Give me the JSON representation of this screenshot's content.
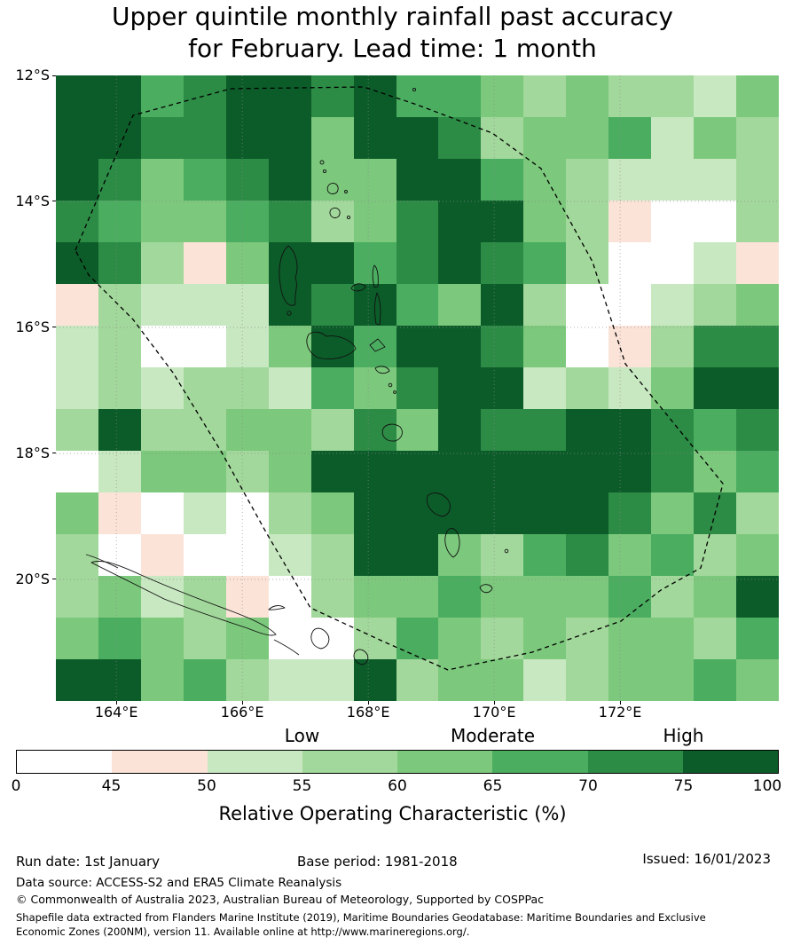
{
  "title": {
    "line1": "Upper quintile monthly rainfall past accuracy",
    "line2": "for February. Lead time: 1 month"
  },
  "footer": {
    "run_date": "Run date: 1st January",
    "base_period": "Base period: 1981-2018",
    "issued": "Issued: 16/01/2023",
    "data_source": "Data source: ACCESS-S2 and ERA5 Climate Reanalysis",
    "copyright": "© Commonwealth of Australia 2023, Australian Bureau of Meteorology, Supported by COSPPac",
    "shapefile_note": "Shapefile data extracted from Flanders Marine Institute (2019), Maritime Boundaries Geodatabase: Maritime Boundaries and Exclusive Economic Zones (200NM), version 11. Available online at http://www.marineregions.org/."
  },
  "chart_data": {
    "type": "heatmap",
    "title": "Upper quintile monthly rainfall past accuracy for February. Lead time: 1 month",
    "region": "Vanuatu",
    "lon_range": [
      163.04,
      174.52
    ],
    "lat_range": [
      12.0,
      21.93
    ],
    "x_tick_lons": [
      164,
      166,
      168,
      170,
      172
    ],
    "x_tick_labels": [
      "164°E",
      "166°E",
      "168°E",
      "170°E",
      "172°E"
    ],
    "y_tick_lats": [
      12,
      14,
      16,
      18,
      20
    ],
    "y_tick_labels": [
      "12°S",
      "14°S",
      "16°S",
      "18°S",
      "20°S"
    ],
    "colorbar": {
      "axis_label": "Relative Operating Characteristic (%)",
      "qualitative_labels": [
        "Low",
        "Moderate",
        "High"
      ],
      "tick_labels": [
        "0",
        "45",
        "50",
        "55",
        "60",
        "65",
        "70",
        "75",
        "100"
      ],
      "bin_ranges": [
        "0-45",
        "45-50",
        "50-55",
        "55-60",
        "60-65",
        "65-70",
        "70-75",
        "75-100"
      ],
      "bin_colors": [
        "#ffffff",
        "#fbe3d8",
        "#c8e8c1",
        "#a2d89b",
        "#7cc87c",
        "#4bad60",
        "#2c8b45",
        "#0c5c29"
      ]
    },
    "grid": {
      "rows": 15,
      "cols": 17,
      "value_kind": "colorbar_bin_index",
      "bin_index_values": [
        [
          7,
          7,
          5,
          6,
          7,
          7,
          6,
          7,
          5,
          5,
          4,
          3,
          4,
          3,
          3,
          2,
          4
        ],
        [
          7,
          7,
          6,
          6,
          7,
          7,
          4,
          7,
          7,
          6,
          3,
          4,
          4,
          5,
          2,
          4,
          3
        ],
        [
          7,
          6,
          4,
          5,
          6,
          7,
          4,
          4,
          7,
          7,
          5,
          4,
          3,
          2,
          2,
          2,
          3
        ],
        [
          6,
          5,
          4,
          4,
          5,
          6,
          3,
          4,
          6,
          7,
          7,
          4,
          3,
          1,
          0,
          0,
          3
        ],
        [
          7,
          6,
          3,
          1,
          4,
          7,
          7,
          5,
          6,
          7,
          6,
          5,
          3,
          0,
          0,
          2,
          1
        ],
        [
          1,
          3,
          2,
          2,
          2,
          7,
          6,
          7,
          5,
          4,
          7,
          3,
          0,
          0,
          2,
          3,
          4
        ],
        [
          2,
          3,
          0,
          0,
          2,
          4,
          7,
          5,
          7,
          7,
          6,
          4,
          0,
          1,
          3,
          6,
          6
        ],
        [
          2,
          3,
          2,
          3,
          3,
          2,
          5,
          4,
          6,
          7,
          7,
          2,
          3,
          2,
          4,
          7,
          7
        ],
        [
          3,
          7,
          3,
          3,
          4,
          4,
          3,
          6,
          4,
          7,
          6,
          6,
          7,
          7,
          6,
          5,
          6
        ],
        [
          0,
          2,
          4,
          4,
          3,
          4,
          7,
          7,
          7,
          7,
          7,
          7,
          7,
          7,
          6,
          4,
          5
        ],
        [
          4,
          1,
          0,
          2,
          0,
          3,
          4,
          7,
          7,
          7,
          7,
          7,
          7,
          6,
          4,
          6,
          3
        ],
        [
          3,
          0,
          1,
          0,
          0,
          2,
          3,
          7,
          7,
          4,
          3,
          5,
          6,
          4,
          5,
          3,
          4
        ],
        [
          3,
          4,
          2,
          3,
          1,
          0,
          3,
          4,
          4,
          5,
          4,
          4,
          4,
          5,
          3,
          4,
          7
        ],
        [
          4,
          5,
          4,
          3,
          4,
          0,
          0,
          3,
          5,
          4,
          3,
          4,
          3,
          4,
          4,
          3,
          5
        ],
        [
          7,
          7,
          4,
          5,
          3,
          2,
          2,
          7,
          3,
          4,
          4,
          2,
          3,
          4,
          4,
          5,
          4
        ]
      ]
    },
    "overlays": [
      "vanuatu-eez-dashed-boundary",
      "island-coastlines",
      "graticule-gridlines"
    ]
  }
}
